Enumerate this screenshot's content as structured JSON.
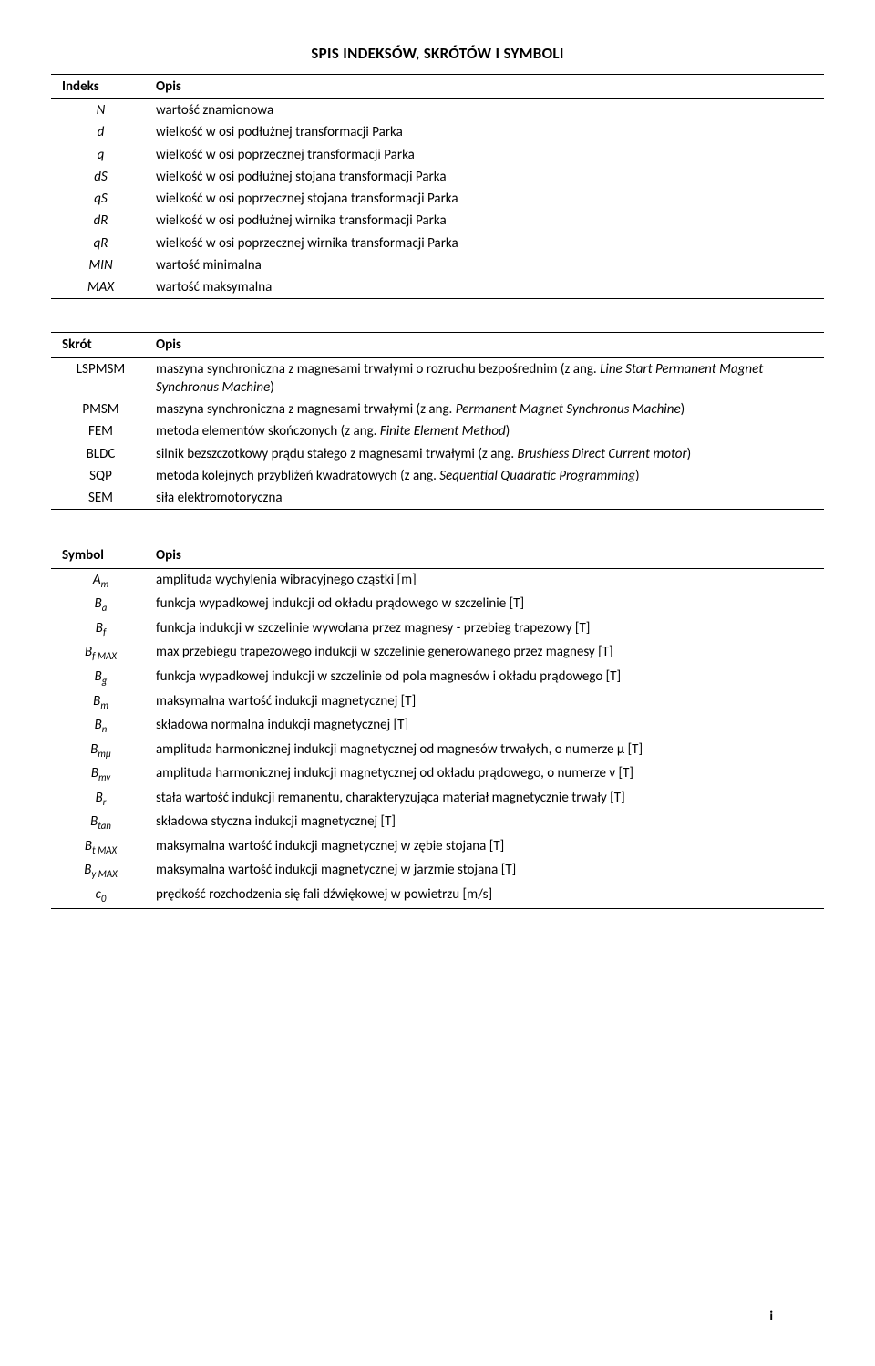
{
  "title": "SPIS INDEKSÓW, SKRÓTÓW I SYMBOLI",
  "headers": {
    "indeks": "Indeks",
    "opis": "Opis",
    "skrot": "Skrót",
    "symbol": "Symbol"
  },
  "indeks": [
    {
      "k": "N",
      "v": "wartość znamionowa"
    },
    {
      "k": "d",
      "v": "wielkość w osi podłużnej transformacji Parka"
    },
    {
      "k": "q",
      "v": "wielkość w osi poprzecznej transformacji Parka"
    },
    {
      "k": "dS",
      "v": "wielkość w osi podłużnej stojana transformacji Parka"
    },
    {
      "k": "qS",
      "v": "wielkość w osi poprzecznej stojana transformacji Parka"
    },
    {
      "k": "dR",
      "v": "wielkość w osi podłużnej wirnika transformacji Parka"
    },
    {
      "k": "qR",
      "v": "wielkość w osi poprzecznej wirnika transformacji Parka"
    },
    {
      "k": "MIN",
      "v": "wartość minimalna"
    },
    {
      "k": "MAX",
      "v": "wartość maksymalna"
    }
  ],
  "skrot": [
    {
      "k": "LSPMSM",
      "v": "maszyna synchroniczna z magnesami trwałymi o rozruchu bezpośrednim (z ang. ",
      "i": "Line Start Permanent Magnet Synchronus Machine",
      "a": ")"
    },
    {
      "k": "PMSM",
      "v": "maszyna synchroniczna z magnesami trwałymi (z ang. ",
      "i": "Permanent Magnet Synchronus Machine",
      "a": ")"
    },
    {
      "k": "FEM",
      "v": "metoda elementów skończonych (z ang. ",
      "i": "Finite Element Method",
      "a": ")"
    },
    {
      "k": "BLDC",
      "v": "silnik bezszczotkowy prądu stałego z magnesami trwałymi (z ang. ",
      "i": "Brushless Direct Current motor",
      "a": ")"
    },
    {
      "k": "SQP",
      "v": "metoda kolejnych przybliżeń kwadratowych (z ang. ",
      "i": "Sequential Quadratic Programming",
      "a": ")"
    },
    {
      "k": "SEM",
      "v": "siła elektromotoryczna",
      "i": "",
      "a": ""
    }
  ],
  "symbol": [
    {
      "k": "A",
      "s": "m",
      "v": "amplituda wychylenia wibracyjnego cząstki [m]"
    },
    {
      "k": "B",
      "s": "a",
      "v": "funkcja wypadkowej indukcji od okładu prądowego w szczelinie [T]"
    },
    {
      "k": "B",
      "s": "f",
      "v": "funkcja indukcji w szczelinie wywołana przez magnesy - przebieg trapezowy [T]"
    },
    {
      "k": "B",
      "s": "f MAX",
      "v": "max przebiegu trapezowego indukcji w szczelinie generowanego przez magnesy [T]"
    },
    {
      "k": "B",
      "s": "g",
      "v": "funkcja wypadkowej indukcji w szczelinie od pola magnesów i okładu prądowego [T]"
    },
    {
      "k": "B",
      "s": "m",
      "v": "maksymalna wartość indukcji magnetycznej [T]"
    },
    {
      "k": "B",
      "s": "n",
      "v": "składowa normalna indukcji magnetycznej [T]"
    },
    {
      "k": "B",
      "s": "mμ",
      "v": "amplituda harmonicznej indukcji magnetycznej od magnesów trwałych, o numerze μ [T]"
    },
    {
      "k": "B",
      "s": "mv",
      "v": "amplituda harmonicznej indukcji magnetycznej od okładu prądowego, o numerze ν [T]"
    },
    {
      "k": "B",
      "s": "r",
      "v": "stała wartość indukcji remanentu, charakteryzująca materiał magnetycznie trwały [T]"
    },
    {
      "k": "B",
      "s": "tan",
      "v": "składowa styczna indukcji magnetycznej [T]"
    },
    {
      "k": "B",
      "s": "t MAX",
      "v": "maksymalna wartość indukcji magnetycznej w zębie stojana [T]"
    },
    {
      "k": "B",
      "s": "y MAX",
      "v": "maksymalna wartość indukcji magnetycznej w jarzmie stojana [T]"
    },
    {
      "k": "c",
      "s": "0",
      "v": "prędkość rozchodzenia się fali dźwiękowej w powietrzu [m/s]"
    }
  ],
  "pageNum": "i"
}
